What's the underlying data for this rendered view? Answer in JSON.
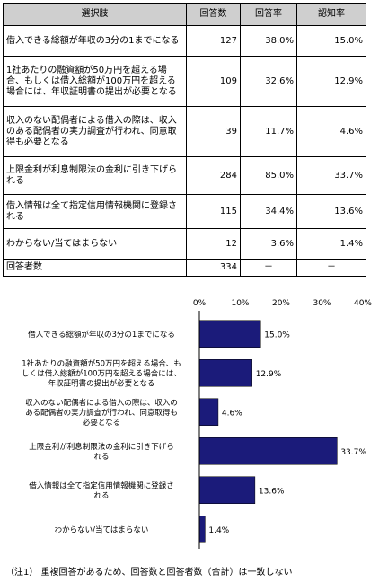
{
  "table": {
    "headers": [
      "選択肢",
      "回答数",
      "回答率",
      "認知率"
    ],
    "rows": [
      {
        "label": "借入できる総額が年収の3分の1までになる",
        "count": "127",
        "rate": "38.0%",
        "awareness": "15.0%"
      },
      {
        "label": "1社あたりの融資額が50万円を超える場合、もしくは借入総額が100万円を超える場合には、年収証明書の提出が必要となる",
        "count": "109",
        "rate": "32.6%",
        "awareness": "12.9%"
      },
      {
        "label": "収入のない配偶者による借入の際は、収入のある配偶者の実力調査が行われ、同意取得も必要となる",
        "count": "39",
        "rate": "11.7%",
        "awareness": "4.6%"
      },
      {
        "label": "上限金利が利息制限法の金利に引き下げられる",
        "count": "284",
        "rate": "85.0%",
        "awareness": "33.7%"
      },
      {
        "label": "借入情報は全て指定信用情報機関に登録される",
        "count": "115",
        "rate": "34.4%",
        "awareness": "13.6%"
      },
      {
        "label": "わからない/当てはまらない",
        "count": "12",
        "rate": "3.6%",
        "awareness": "1.4%"
      }
    ],
    "footer": {
      "label": "回答者数",
      "count": "334",
      "rate": "－",
      "awareness": "－"
    }
  },
  "chart_data": {
    "type": "bar",
    "orientation": "horizontal",
    "categories": [
      "借入できる総額が年収の3分の1までになる",
      "1社あたりの融資額が50万円を超える場合、もしくは借入総額が100万円を超える場合には、年収証明書の提出が必要となる",
      "収入のない配偶者による借入の際は、収入のある配偶者の実力調査が行われ、同意取得も必要となる",
      "上限金利が利息制限法の金利に引き下げられる",
      "借入情報は全て指定信用情報機関に登録される",
      "わからない/当てはまらない"
    ],
    "category_lines": [
      [
        "借入できる総額が年収の3分の1までになる"
      ],
      [
        "1社あたりの融資額が50万円を超える場合、も",
        "しくは借入総額が100万円を超える場合には、",
        "年収証明書の提出が必要となる"
      ],
      [
        "収入のない配偶者による借入の際は、収入の",
        "ある配偶者の実力調査が行われ、同意取得も",
        "必要となる"
      ],
      [
        "上限金利が利息制限法の金利に引き下げら",
        "れる"
      ],
      [
        "借入情報は全て指定信用情報機関に登録さ",
        "れる"
      ],
      [
        "わからない/当てはまらない"
      ]
    ],
    "values": [
      15.0,
      12.9,
      4.6,
      33.7,
      13.6,
      1.4
    ],
    "value_labels": [
      "15.0%",
      "12.9%",
      "4.6%",
      "33.7%",
      "13.6%",
      "1.4%"
    ],
    "xlim": [
      0,
      40
    ],
    "xticks": [
      0,
      10,
      20,
      30,
      40
    ],
    "xtick_labels": [
      "0%",
      "10%",
      "20%",
      "30%",
      "40%"
    ],
    "bar_color": "#1b1b7a",
    "grid": false
  },
  "note": "（注1） 重複回答があるため、回答数と回答者数（合計）は一致しない"
}
